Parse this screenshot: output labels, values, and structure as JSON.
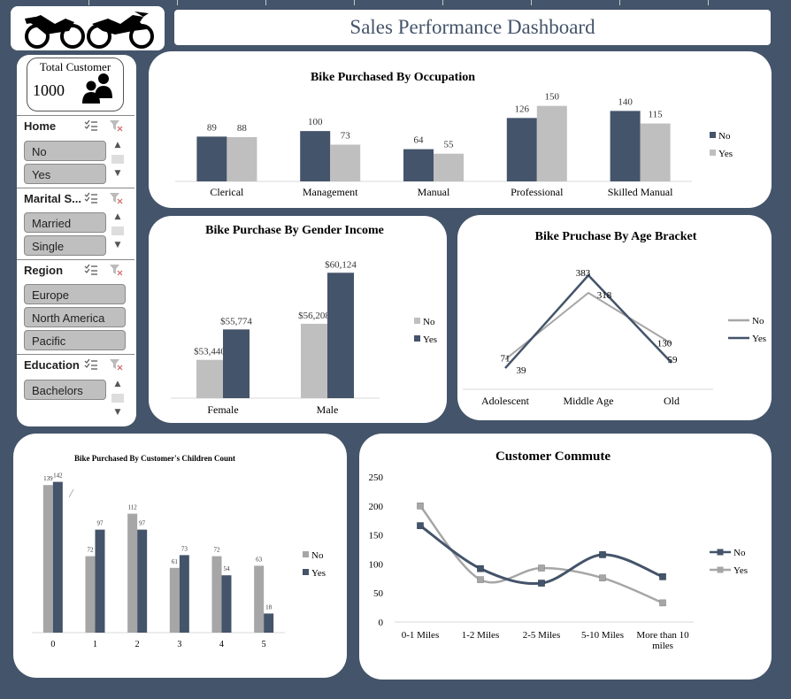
{
  "header": {
    "title": "Sales Performance Dashboard"
  },
  "logo": {
    "icon": "motorcycle-icon"
  },
  "kpi": {
    "label": "Total Customer",
    "value": "1000",
    "icon": "users-icon"
  },
  "slicers": [
    {
      "title": "Home",
      "items": [
        "No",
        "Yes"
      ]
    },
    {
      "title": "Marital S...",
      "items": [
        "Married",
        "Single"
      ]
    },
    {
      "title": "Region",
      "items": [
        "Europe",
        "North America",
        "Pacific"
      ]
    },
    {
      "title": "Education",
      "items": [
        "Bachelors"
      ]
    }
  ],
  "colors": {
    "background": "#44546a",
    "dark": "#44546a",
    "light": "#bfbfbf",
    "mid": "#a6a6a6"
  },
  "chart_data": [
    {
      "type": "bar",
      "title": "Bike Purchased By Occupation",
      "categories": [
        "Clerical",
        "Management",
        "Manual",
        "Professional",
        "Skilled Manual"
      ],
      "series": [
        {
          "name": "No",
          "values": [
            89,
            100,
            64,
            126,
            140
          ],
          "labels": [
            "89",
            "100",
            "64",
            "126",
            "140"
          ]
        },
        {
          "name": "Yes",
          "values": [
            88,
            73,
            55,
            150,
            115
          ],
          "labels": [
            "88",
            "73",
            "55",
            "150",
            "115"
          ]
        }
      ],
      "legend": "right"
    },
    {
      "type": "bar",
      "title": "Bike Purchase By Gender Income",
      "categories": [
        "Female",
        "Male"
      ],
      "series": [
        {
          "name": "No",
          "values": [
            53440,
            56208
          ],
          "labels": [
            "$53,440",
            "$56,208"
          ]
        },
        {
          "name": "Yes",
          "values": [
            55774,
            60124
          ],
          "labels": [
            "$55,774",
            "$60,124"
          ]
        }
      ],
      "legend": "right"
    },
    {
      "type": "line",
      "title": "Bike Pruchase By Age Bracket",
      "categories": [
        "Adolescent",
        "Middle Age",
        "Old"
      ],
      "series": [
        {
          "name": "No",
          "values": [
            71,
            318,
            130
          ],
          "labels": [
            "71",
            "318",
            "130"
          ]
        },
        {
          "name": "Yes",
          "values": [
            39,
            383,
            59
          ],
          "labels": [
            "39",
            "383",
            "59"
          ]
        }
      ],
      "legend": "right"
    },
    {
      "type": "bar",
      "title": "Bike Purchased By Customer's Children Count",
      "categories": [
        "0",
        "1",
        "2",
        "3",
        "4",
        "5"
      ],
      "series": [
        {
          "name": "No",
          "values": [
            139,
            72,
            112,
            61,
            72,
            63
          ],
          "labels": [
            "139",
            "72",
            "112",
            "61",
            "72",
            "63"
          ]
        },
        {
          "name": "Yes",
          "values": [
            142,
            97,
            97,
            73,
            54,
            18
          ],
          "labels": [
            "142",
            "97",
            "97",
            "73",
            "54",
            "18"
          ]
        }
      ],
      "legend": "right"
    },
    {
      "type": "line",
      "title": "Customer Commute",
      "categories": [
        "0-1 Miles",
        "1-2 Miles",
        "2-5 Miles",
        "5-10 Miles",
        "More than 10 miles"
      ],
      "category_lines": [
        [
          "0-1 Miles"
        ],
        [
          "1-2 Miles"
        ],
        [
          "2-5 Miles"
        ],
        [
          "5-10 Miles"
        ],
        [
          "More than 10",
          "miles"
        ]
      ],
      "series": [
        {
          "name": "No",
          "values": [
            166,
            92,
            67,
            116,
            78
          ]
        },
        {
          "name": "Yes",
          "values": [
            200,
            73,
            93,
            76,
            33
          ]
        }
      ],
      "yticks": [
        "0",
        "50",
        "100",
        "150",
        "200",
        "250"
      ],
      "ylim": [
        0,
        250
      ],
      "legend": "right"
    }
  ]
}
